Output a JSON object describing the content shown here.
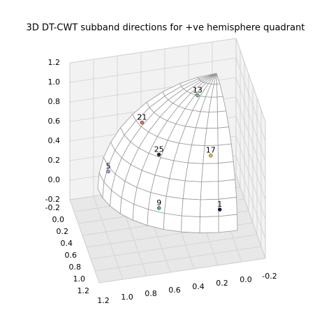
{
  "chart_data": {
    "type": "scatter3d",
    "title": "3D DT-CWT subband directions for +ve hemisphere quadrant",
    "xlim": [
      -0.2,
      1.2
    ],
    "ylim": [
      -0.2,
      1.2
    ],
    "zlim": [
      -0.2,
      1.2
    ],
    "xticks": [
      -0.2,
      {
        "value": 0,
        "label": "0.0"
      },
      0.2,
      0.4,
      0.6,
      0.8,
      {
        "value": 1,
        "label": "1.0"
      },
      1.2
    ],
    "yticks": [
      -0.2,
      {
        "value": 0,
        "label": "0.0"
      },
      0.2,
      0.4,
      0.6,
      0.8,
      {
        "value": 1,
        "label": "1.0"
      },
      1.2
    ],
    "zticks": [
      -0.2,
      {
        "value": 0,
        "label": "0.0"
      },
      0.2,
      0.4,
      0.6,
      0.8,
      {
        "value": 1,
        "label": "1.0"
      },
      1.2
    ],
    "grid": true,
    "points": [
      {
        "label": "13",
        "x": 0.23,
        "y": 0.2,
        "z": 0.95,
        "color": "#7fbf7f"
      },
      {
        "label": "21",
        "x": 0.3,
        "y": 0.68,
        "z": 0.8,
        "color": "#e07050"
      },
      {
        "label": "25",
        "x": 0.54,
        "y": 0.58,
        "z": 0.6,
        "color": "#402010"
      },
      {
        "label": "17",
        "x": 0.52,
        "y": 0.14,
        "z": 0.5,
        "color": "#d4c040"
      },
      {
        "label": "5",
        "x": 0.22,
        "y": 0.95,
        "z": 0.3,
        "color": "#9999ff"
      },
      {
        "label": "9",
        "x": 0.77,
        "y": 0.62,
        "z": 0.2,
        "color": "#40b0b0"
      },
      {
        "label": "1",
        "x": 0.78,
        "y": 0.11,
        "z": 0.1,
        "color": "#101050"
      }
    ]
  }
}
